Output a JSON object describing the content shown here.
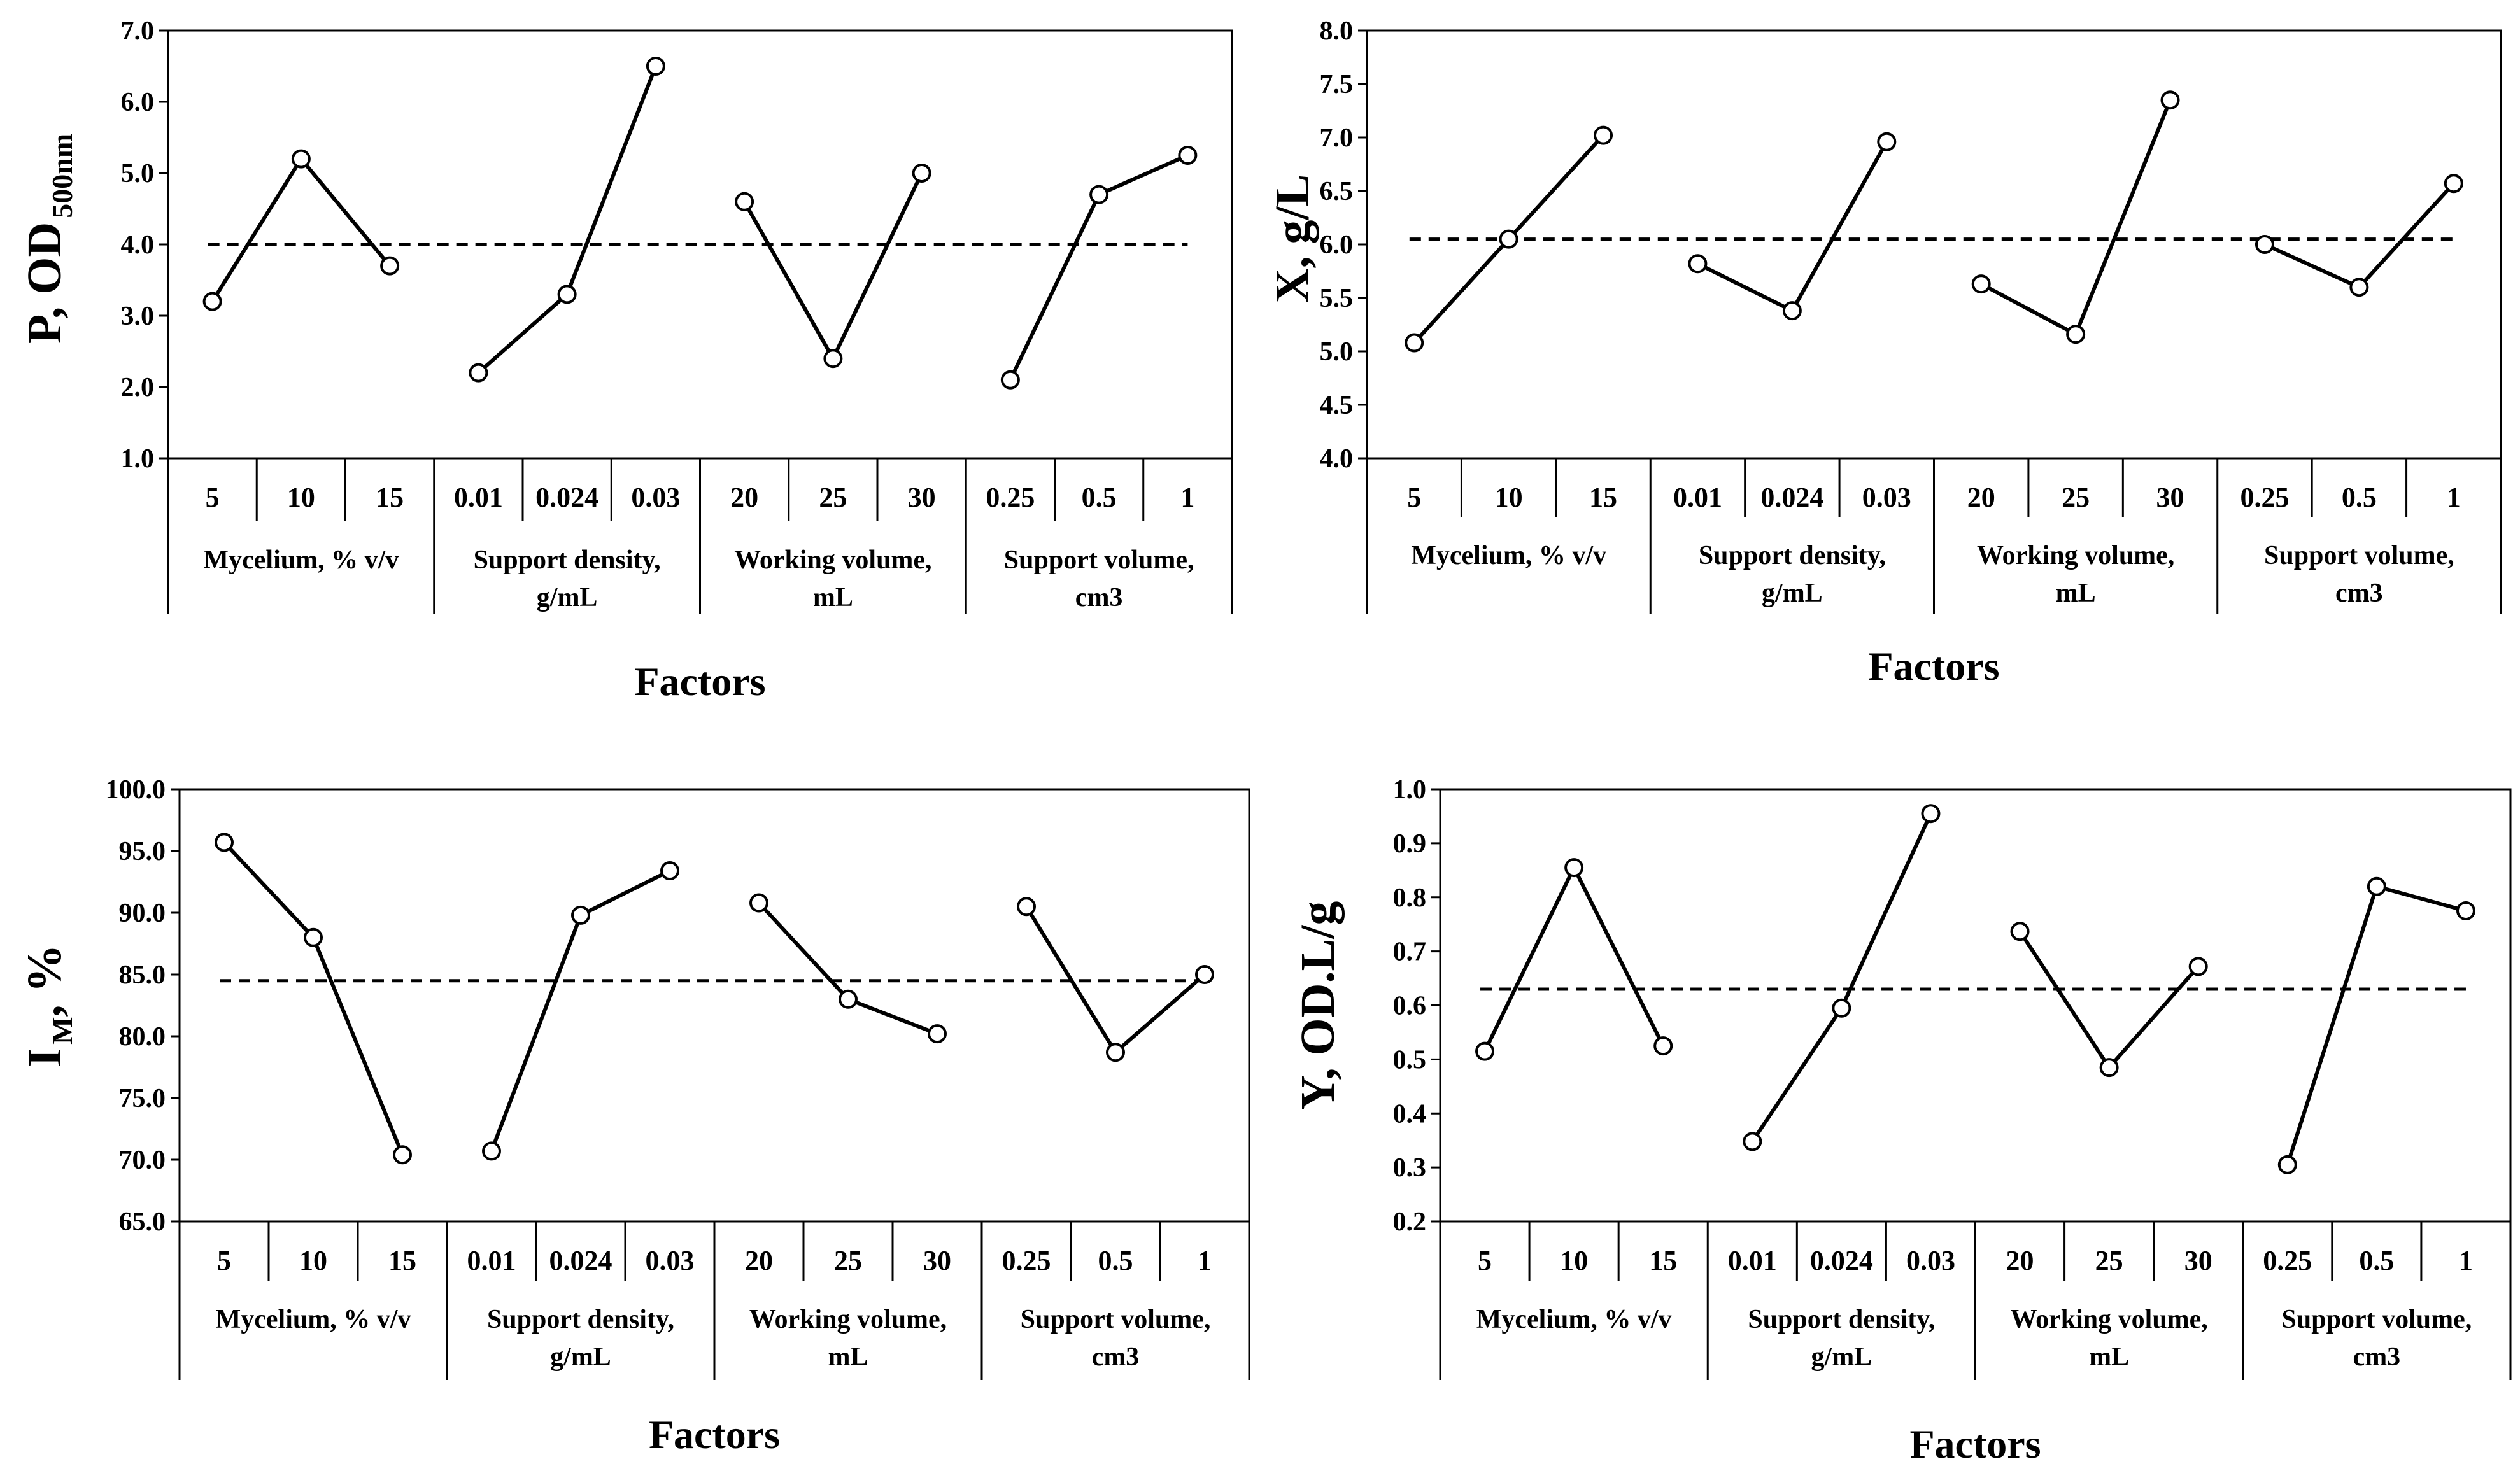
{
  "figure": {
    "shared": {
      "tick_labels": [
        "5",
        "10",
        "15",
        "0.01",
        "0.024",
        "0.03",
        "20",
        "25",
        "30",
        "0.25",
        "0.5",
        "1"
      ],
      "groups": [
        {
          "line1": "Mycelium, % v/v",
          "line2": ""
        },
        {
          "line1": "Support density,",
          "line2": "g/mL"
        },
        {
          "line1": "Working volume,",
          "line2": "mL"
        },
        {
          "line1": "Support volume,",
          "line2": "cm3"
        }
      ],
      "xlabel": "Factors"
    }
  },
  "chart_data": [
    {
      "type": "line",
      "ylabel": "P, OD",
      "ylabel_sub": "500nm",
      "xlabel": "Factors",
      "ylim": [
        1.0,
        7.0
      ],
      "yticks": [
        "7.0",
        "6.0",
        "5.0",
        "4.0",
        "3.0",
        "2.0",
        "1.0"
      ],
      "mean": 4.0,
      "series": [
        {
          "name": "Mycelium, % v/v",
          "values": [
            3.2,
            5.2,
            3.7
          ]
        },
        {
          "name": "Support density, g/mL",
          "values": [
            2.2,
            3.3,
            6.5
          ]
        },
        {
          "name": "Working volume, mL",
          "values": [
            4.6,
            2.4,
            5.0
          ]
        },
        {
          "name": "Support volume, cm3",
          "values": [
            2.1,
            4.7,
            5.25
          ]
        }
      ]
    },
    {
      "type": "line",
      "ylabel": "X, g/L",
      "ylabel_sub": "",
      "xlabel": "Factors",
      "ylim": [
        4.0,
        8.0
      ],
      "yticks": [
        "8.0",
        "7.5",
        "7.0",
        "6.5",
        "6.0",
        "5.5",
        "5.0",
        "4.5",
        "4.0"
      ],
      "mean": 6.05,
      "series": [
        {
          "name": "Mycelium, % v/v",
          "values": [
            5.08,
            6.05,
            7.02
          ]
        },
        {
          "name": "Support density, g/mL",
          "values": [
            5.82,
            5.38,
            6.96
          ]
        },
        {
          "name": "Working volume, mL",
          "values": [
            5.63,
            5.16,
            7.35
          ]
        },
        {
          "name": "Support volume, cm3",
          "values": [
            6.0,
            5.6,
            6.57
          ]
        }
      ]
    },
    {
      "type": "line",
      "ylabel": "I",
      "ylabel_sub": "M",
      "ylabel_tail": ", %",
      "xlabel": "Factors",
      "ylim": [
        65.0,
        100.0
      ],
      "yticks": [
        "100.0",
        "95.0",
        "90.0",
        "85.0",
        "80.0",
        "75.0",
        "70.0",
        "65.0"
      ],
      "mean": 84.5,
      "series": [
        {
          "name": "Mycelium, % v/v",
          "values": [
            95.7,
            88.0,
            70.4
          ]
        },
        {
          "name": "Support density, g/mL",
          "values": [
            70.7,
            89.8,
            93.4
          ]
        },
        {
          "name": "Working volume, mL",
          "values": [
            90.8,
            83.0,
            80.2
          ]
        },
        {
          "name": "Support volume, cm3",
          "values": [
            90.5,
            78.7,
            85.0
          ]
        }
      ]
    },
    {
      "type": "line",
      "ylabel": "Y, OD.L/g",
      "ylabel_sub": "",
      "xlabel": "Factors",
      "ylim": [
        0.2,
        1.0
      ],
      "yticks": [
        "1.0",
        "0.9",
        "0.8",
        "0.7",
        "0.6",
        "0.5",
        "0.4",
        "0.3",
        "0.2"
      ],
      "mean": 0.63,
      "series": [
        {
          "name": "Mycelium, % v/v",
          "values": [
            0.515,
            0.855,
            0.525
          ]
        },
        {
          "name": "Support density, g/mL",
          "values": [
            0.348,
            0.595,
            0.955
          ]
        },
        {
          "name": "Working volume, mL",
          "values": [
            0.737,
            0.485,
            0.672
          ]
        },
        {
          "name": "Support volume, cm3",
          "values": [
            0.305,
            0.82,
            0.775
          ]
        }
      ]
    }
  ]
}
